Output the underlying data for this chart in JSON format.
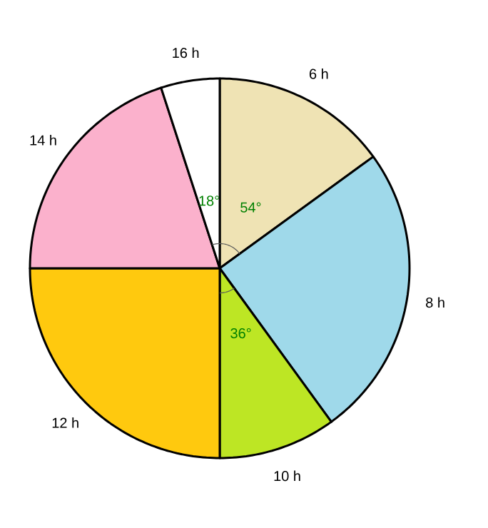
{
  "chart_data": {
    "type": "pie",
    "categories": [
      "6 h",
      "8 h",
      "10 h",
      "12 h",
      "14 h",
      "16 h"
    ],
    "values": [
      54,
      90,
      36,
      90,
      72,
      18
    ],
    "colors": [
      "#efe3b4",
      "#9fd9ea",
      "#bde624",
      "#ffc90e",
      "#fbb1cc",
      "#ffffff"
    ],
    "value_labels": [
      "54°",
      null,
      "36°",
      null,
      null,
      "18°"
    ]
  }
}
